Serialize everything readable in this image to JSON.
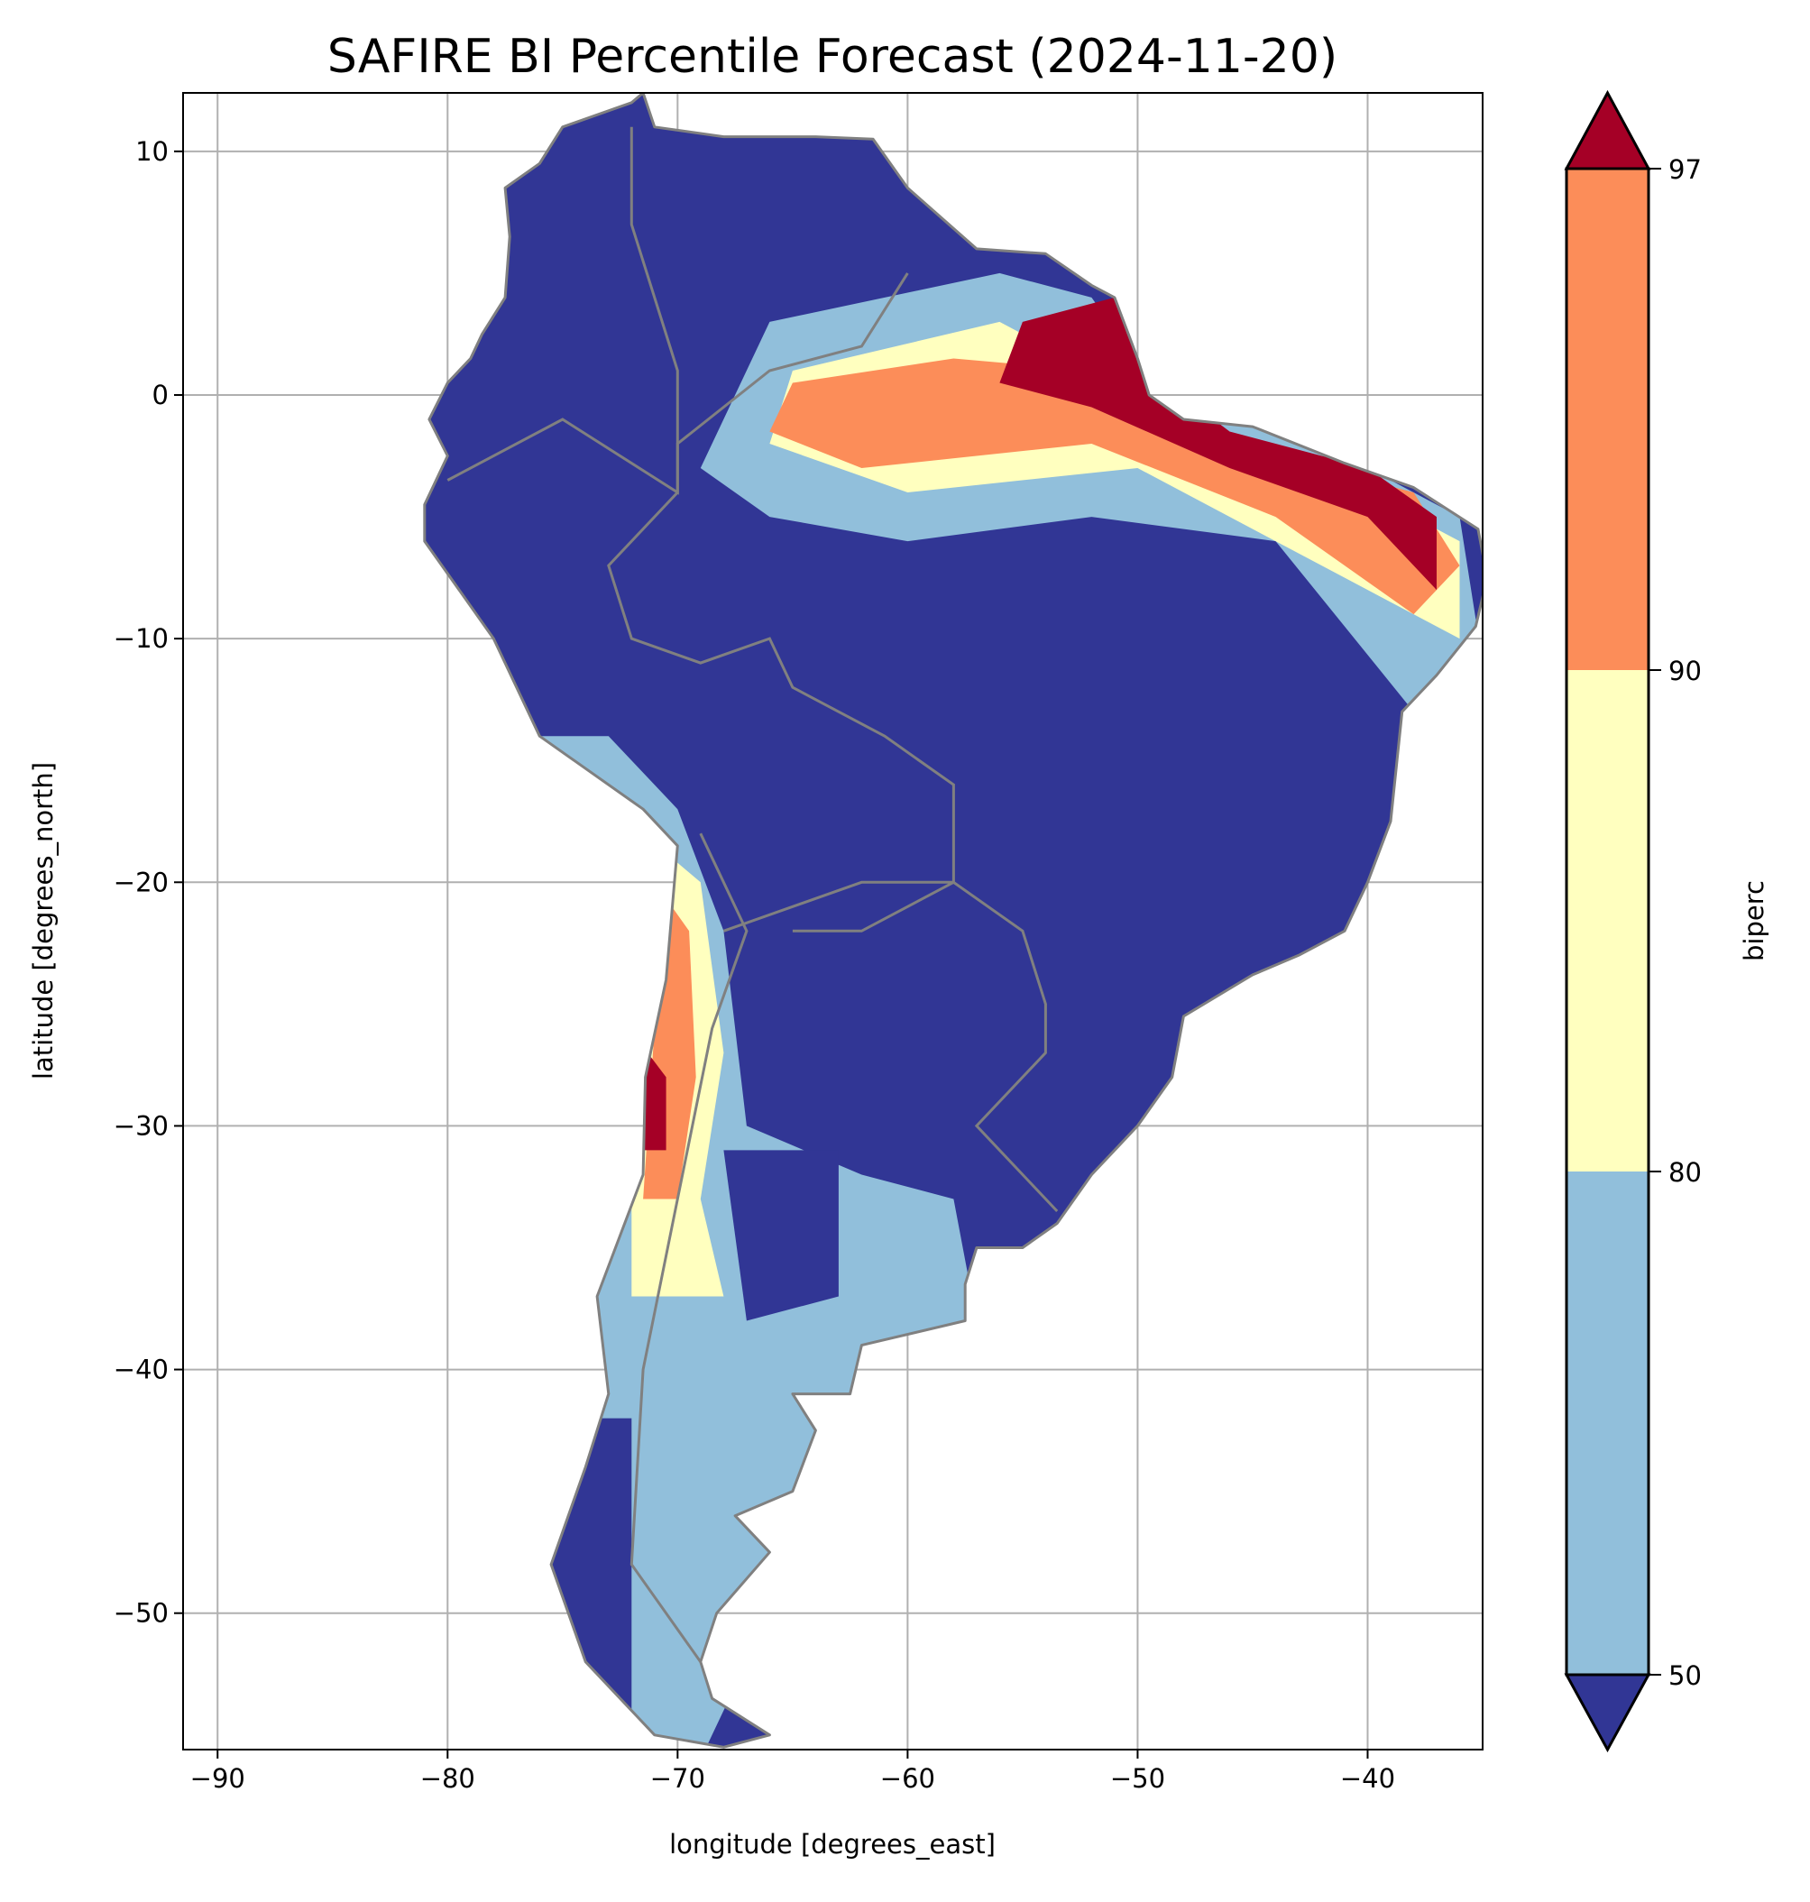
{
  "chart_data": {
    "type": "heatmap",
    "title": "SAFIRE BI Percentile Forecast (2024-11-20)",
    "xlabel": "longitude [degrees_east]",
    "ylabel": "latitude [degrees_north]",
    "xlim": [
      -91.5,
      -35
    ],
    "ylim": [
      -55.6,
      12.4
    ],
    "xticks": [
      -90,
      -80,
      -70,
      -60,
      -50,
      -40
    ],
    "xtick_labels": [
      "−90",
      "−80",
      "−70",
      "−60",
      "−50",
      "−40"
    ],
    "yticks": [
      10,
      0,
      -10,
      -20,
      -30,
      -40,
      -50
    ],
    "ytick_labels": [
      "10",
      "0",
      "−10",
      "−20",
      "−30",
      "−40",
      "−50"
    ],
    "grid": true,
    "colorbar": {
      "label": "biperc",
      "levels": [
        50,
        80,
        90,
        97
      ],
      "tick_labels": [
        "50",
        "80",
        "90",
        "97"
      ],
      "extend": "both",
      "colors": [
        "#313695",
        "#91bfdb",
        "#ffffbf",
        "#fc8d59",
        "#a50026"
      ]
    },
    "border_color": "#808080"
  }
}
